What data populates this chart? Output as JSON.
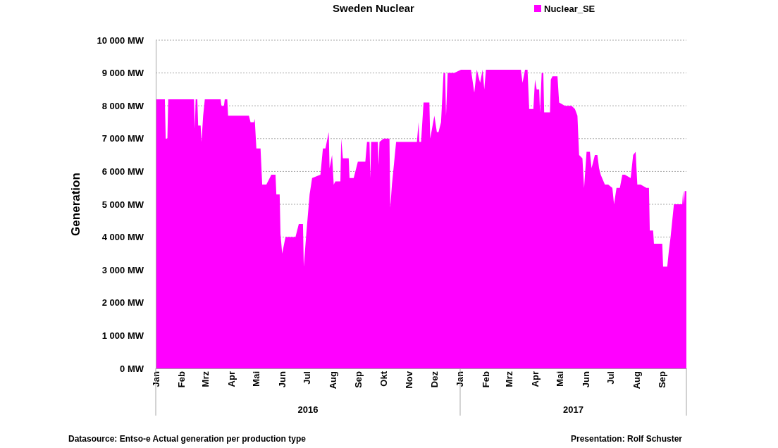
{
  "chart_data": {
    "type": "area",
    "title": "Sweden Nuclear",
    "ylabel": "Generation",
    "legend": "top",
    "grid": "y",
    "xlim": [
      "2016-01-01",
      "2017-09-30"
    ],
    "xticks": [
      {
        "value": "2016-01-01",
        "label": "Jan"
      },
      {
        "value": "2016-02-01",
        "label": "Feb"
      },
      {
        "value": "2016-03-01",
        "label": "Mrz"
      },
      {
        "value": "2016-04-01",
        "label": "Apr"
      },
      {
        "value": "2016-05-01",
        "label": "Mai"
      },
      {
        "value": "2016-06-01",
        "label": "Jun"
      },
      {
        "value": "2016-07-01",
        "label": "Jul"
      },
      {
        "value": "2016-08-01",
        "label": "Aug"
      },
      {
        "value": "2016-09-01",
        "label": "Sep"
      },
      {
        "value": "2016-10-01",
        "label": "Okt"
      },
      {
        "value": "2016-11-01",
        "label": "Nov"
      },
      {
        "value": "2016-12-01",
        "label": "Dez"
      },
      {
        "value": "2017-01-01",
        "label": "Jan"
      },
      {
        "value": "2017-02-01",
        "label": "Feb"
      },
      {
        "value": "2017-03-01",
        "label": "Mrz"
      },
      {
        "value": "2017-04-01",
        "label": "Apr"
      },
      {
        "value": "2017-05-01",
        "label": "Mai"
      },
      {
        "value": "2017-06-01",
        "label": "Jun"
      },
      {
        "value": "2017-07-01",
        "label": "Jul"
      },
      {
        "value": "2017-08-01",
        "label": "Aug"
      },
      {
        "value": "2017-09-01",
        "label": "Sep"
      }
    ],
    "ylim": [
      0,
      10000
    ],
    "yticks": [
      {
        "value": 0,
        "label": "0 MW"
      },
      {
        "value": 1000,
        "label": "1 000 MW"
      },
      {
        "value": 2000,
        "label": "2 000 MW"
      },
      {
        "value": 3000,
        "label": "3 000 MW"
      },
      {
        "value": 4000,
        "label": "4 000 MW"
      },
      {
        "value": 5000,
        "label": "5 000 MW"
      },
      {
        "value": 6000,
        "label": "6 000 MW"
      },
      {
        "value": 7000,
        "label": "7 000 MW"
      },
      {
        "value": 8000,
        "label": "8 000 MW"
      },
      {
        "value": 9000,
        "label": "9 000 MW"
      },
      {
        "value": 10000,
        "label": "10 000 MW"
      }
    ],
    "annotations": [
      "2016",
      "2017",
      "Datasource: Entso-e  Actual generation per production type",
      "Presentation: Rolf Schuster"
    ],
    "series": [
      {
        "name": "Nuclear_SE",
        "color": "#ff00ff",
        "x": [
          "2016-01-01",
          "2016-01-12",
          "2016-01-13",
          "2016-01-15",
          "2016-01-16",
          "2016-02-16",
          "2016-02-17",
          "2016-02-18",
          "2016-02-20",
          "2016-02-21",
          "2016-02-24",
          "2016-02-25",
          "2016-02-27",
          "2016-02-29",
          "2016-03-19",
          "2016-03-20",
          "2016-03-23",
          "2016-03-24",
          "2016-03-27",
          "2016-03-28",
          "2016-04-22",
          "2016-04-24",
          "2016-04-28",
          "2016-04-29",
          "2016-05-01",
          "2016-05-06",
          "2016-05-08",
          "2016-05-13",
          "2016-05-19",
          "2016-05-24",
          "2016-05-25",
          "2016-05-29",
          "2016-05-30",
          "2016-06-01",
          "2016-06-05",
          "2016-06-17",
          "2016-06-21",
          "2016-06-26",
          "2016-06-27",
          "2016-06-30",
          "2016-07-04",
          "2016-07-07",
          "2016-07-17",
          "2016-07-20",
          "2016-07-23",
          "2016-07-27",
          "2016-07-28",
          "2016-07-31",
          "2016-08-02",
          "2016-08-04",
          "2016-08-10",
          "2016-08-11",
          "2016-08-13",
          "2016-08-20",
          "2016-08-21",
          "2016-08-26",
          "2016-08-31",
          "2016-09-09",
          "2016-09-11",
          "2016-09-14",
          "2016-09-15",
          "2016-09-16",
          "2016-09-24",
          "2016-09-25",
          "2016-09-26",
          "2016-10-01",
          "2016-10-08",
          "2016-10-09",
          "2016-10-11",
          "2016-10-16",
          "2016-10-22",
          "2016-11-02",
          "2016-11-10",
          "2016-11-12",
          "2016-11-13",
          "2016-11-15",
          "2016-11-18",
          "2016-11-25",
          "2016-11-26",
          "2016-12-01",
          "2016-12-04",
          "2016-12-06",
          "2016-12-09",
          "2016-12-12",
          "2016-12-14",
          "2016-12-15",
          "2016-12-17",
          "2016-12-25",
          "2017-01-02",
          "2017-01-14",
          "2017-01-18",
          "2017-01-21",
          "2017-01-25",
          "2017-01-28",
          "2017-01-30",
          "2017-02-01",
          "2017-03-15",
          "2017-03-17",
          "2017-03-20",
          "2017-03-23",
          "2017-03-25",
          "2017-03-30",
          "2017-04-01",
          "2017-04-03",
          "2017-04-06",
          "2017-04-07",
          "2017-04-09",
          "2017-04-11",
          "2017-04-12",
          "2017-04-19",
          "2017-04-20",
          "2017-04-22",
          "2017-04-28",
          "2017-04-30",
          "2017-05-07",
          "2017-05-15",
          "2017-05-19",
          "2017-05-22",
          "2017-05-24",
          "2017-05-28",
          "2017-05-30",
          "2017-06-02",
          "2017-06-06",
          "2017-06-08",
          "2017-06-12",
          "2017-06-15",
          "2017-06-17",
          "2017-06-19",
          "2017-06-24",
          "2017-06-28",
          "2017-07-03",
          "2017-07-05",
          "2017-07-08",
          "2017-07-12",
          "2017-07-15",
          "2017-07-18",
          "2017-07-25",
          "2017-07-28",
          "2017-07-31",
          "2017-08-02",
          "2017-08-06",
          "2017-08-13",
          "2017-08-16",
          "2017-08-17",
          "2017-08-21",
          "2017-08-22",
          "2017-09-01",
          "2017-09-02",
          "2017-09-07",
          "2017-09-09",
          "2017-09-11",
          "2017-09-15",
          "2017-09-25",
          "2017-09-26",
          "2017-09-27",
          "2017-09-28",
          "2017-09-30"
        ],
        "values": [
          8200,
          8200,
          7000,
          7000,
          8200,
          8200,
          7300,
          8200,
          8200,
          7400,
          7400,
          6900,
          7700,
          8200,
          8200,
          8000,
          8000,
          8200,
          8200,
          7700,
          7700,
          7500,
          7500,
          7600,
          6700,
          6700,
          5600,
          5600,
          5900,
          5900,
          5300,
          5300,
          4100,
          3500,
          4000,
          4000,
          4400,
          4400,
          3100,
          4100,
          5300,
          5800,
          5900,
          6700,
          6700,
          7200,
          6100,
          6500,
          5600,
          5700,
          5700,
          7000,
          6400,
          6400,
          5800,
          5800,
          6300,
          6300,
          6900,
          6900,
          5800,
          6900,
          6900,
          6200,
          6900,
          7000,
          7000,
          4900,
          5600,
          6900,
          6900,
          6900,
          6900,
          7500,
          6900,
          6900,
          8100,
          8100,
          7000,
          7700,
          7200,
          7200,
          7500,
          9000,
          9000,
          7700,
          9000,
          9000,
          9100,
          9100,
          8400,
          9100,
          8700,
          9100,
          8500,
          9100,
          9100,
          8700,
          9100,
          9100,
          7900,
          7900,
          8800,
          8500,
          8500,
          7800,
          9000,
          9000,
          7800,
          7800,
          8800,
          8900,
          8900,
          8100,
          8000,
          8000,
          7900,
          7700,
          6500,
          6400,
          5500,
          6600,
          6600,
          6100,
          6500,
          6500,
          6100,
          5900,
          5600,
          5600,
          5500,
          5000,
          5500,
          5500,
          5900,
          5900,
          5800,
          6500,
          6600,
          5600,
          5600,
          5500,
          5500,
          4200,
          4200,
          3800,
          3800,
          3100,
          3100,
          3600,
          4000,
          5000,
          5000,
          5400,
          5000,
          5400,
          5400
        ]
      }
    ]
  }
}
